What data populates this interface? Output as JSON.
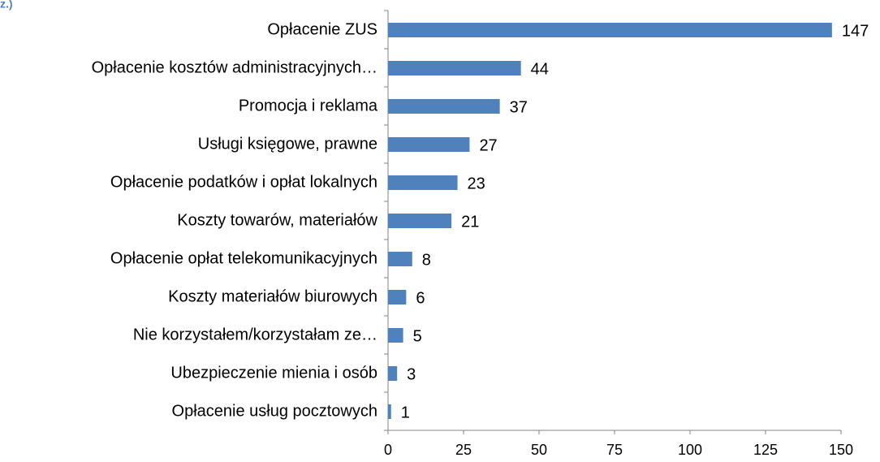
{
  "chart_data": {
    "type": "bar",
    "orientation": "horizontal",
    "title": "z.)",
    "categories": [
      "Opłacenie ZUS",
      "Opłacenie kosztów administracyjnych…",
      "Promocja i reklama",
      "Usługi księgowe, prawne",
      "Opłacenie podatków i opłat lokalnych",
      "Koszty towarów, materiałów",
      "Opłacenie opłat telekomunikacyjnych",
      "Koszty materiałów biurowych",
      "Nie korzystałem/korzystałam ze…",
      "Ubezpieczenie mienia i osób",
      "Opłacenie usług pocztowych"
    ],
    "values": [
      147,
      44,
      37,
      27,
      23,
      21,
      8,
      6,
      5,
      3,
      1
    ],
    "color": "#4f81bd",
    "xlim": [
      0,
      150
    ],
    "xticks": [
      0,
      25,
      50,
      75,
      100,
      125,
      150
    ],
    "grid": false
  }
}
